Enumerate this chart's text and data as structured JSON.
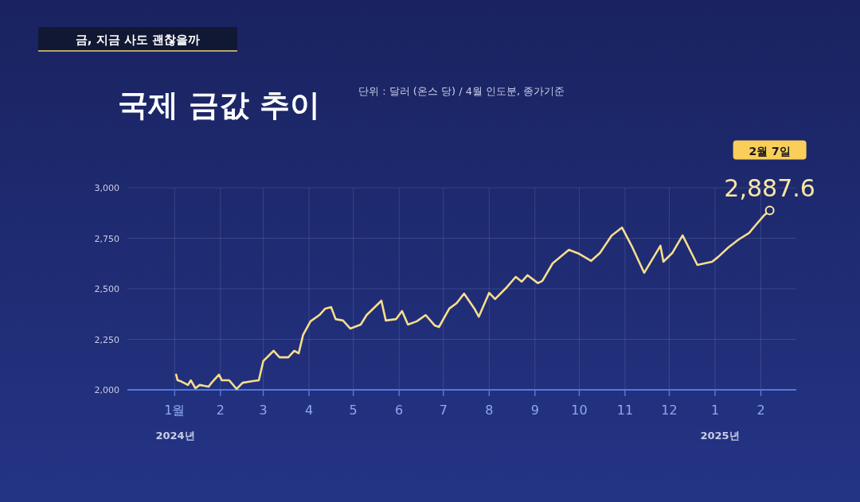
{
  "chart_data": {
    "type": "line",
    "title": "국제 금값 추이",
    "subtitle": "단위 : 달러 (온스 당) / 4월 인도분, 종가기준",
    "annotations": [
      "금, 지금 사도 괜찮을까",
      "2024년",
      "2025년",
      "2월 7일"
    ],
    "x": [
      "2024-01-02",
      "2024-01-03",
      "2024-01-05",
      "2024-01-10",
      "2024-01-12",
      "2024-01-15",
      "2024-01-18",
      "2024-01-24",
      "2024-01-26",
      "2024-01-31",
      "2024-02-02",
      "2024-02-07",
      "2024-02-12",
      "2024-02-16",
      "2024-02-23",
      "2024-02-27",
      "2024-03-01",
      "2024-03-08",
      "2024-03-12",
      "2024-03-18",
      "2024-03-22",
      "2024-03-25",
      "2024-03-28",
      "2024-04-02",
      "2024-04-08",
      "2024-04-12",
      "2024-04-16",
      "2024-04-19",
      "2024-04-24",
      "2024-04-29",
      "2024-05-06",
      "2024-05-10",
      "2024-05-20",
      "2024-05-23",
      "2024-05-30",
      "2024-06-03",
      "2024-06-07",
      "2024-06-13",
      "2024-06-19",
      "2024-06-25",
      "2024-06-28",
      "2024-07-05",
      "2024-07-10",
      "2024-07-15",
      "2024-07-22",
      "2024-07-25",
      "2024-08-01",
      "2024-08-05",
      "2024-08-13",
      "2024-08-19",
      "2024-08-23",
      "2024-08-27",
      "2024-09-03",
      "2024-09-06",
      "2024-09-13",
      "2024-09-24",
      "2024-10-01",
      "2024-10-09",
      "2024-10-15",
      "2024-10-23",
      "2024-10-30",
      "2024-11-06",
      "2024-11-14",
      "2024-11-25",
      "2024-11-27",
      "2024-12-03",
      "2024-12-10",
      "2024-12-16",
      "2024-12-20",
      "2024-12-30",
      "2025-01-03",
      "2025-01-10",
      "2025-01-17",
      "2025-01-24",
      "2025-01-28",
      "2025-02-03",
      "2025-02-07"
    ],
    "values": [
      2075,
      2047,
      2043,
      2024,
      2047,
      2008,
      2024,
      2016,
      2035,
      2075,
      2047,
      2047,
      2004,
      2035,
      2043,
      2047,
      2142,
      2193,
      2161,
      2161,
      2193,
      2181,
      2272,
      2339,
      2370,
      2402,
      2409,
      2350,
      2343,
      2303,
      2323,
      2370,
      2441,
      2343,
      2350,
      2390,
      2323,
      2339,
      2370,
      2319,
      2311,
      2402,
      2429,
      2476,
      2402,
      2362,
      2480,
      2449,
      2508,
      2559,
      2535,
      2567,
      2528,
      2539,
      2626,
      2693,
      2673,
      2638,
      2677,
      2764,
      2803,
      2705,
      2579,
      2713,
      2634,
      2677,
      2764,
      2677,
      2618,
      2634,
      2657,
      2705,
      2744,
      2776,
      2811,
      2862,
      2887.6
    ],
    "value_labels": [
      null,
      null,
      null,
      null,
      null,
      null,
      null,
      null,
      null,
      null,
      null,
      null,
      null,
      null,
      null,
      null,
      null,
      null,
      null,
      null,
      null,
      null,
      null,
      null,
      null,
      null,
      null,
      null,
      null,
      null,
      null,
      null,
      null,
      null,
      null,
      null,
      null,
      null,
      null,
      null,
      null,
      null,
      null,
      null,
      null,
      null,
      null,
      null,
      null,
      null,
      null,
      null,
      null,
      null,
      null,
      null,
      null,
      null,
      null,
      null,
      null,
      null,
      null,
      null,
      null,
      null,
      null,
      null,
      null,
      null,
      null,
      null,
      null,
      null,
      null,
      null,
      "2,887.6"
    ],
    "color": "#f6dd8e",
    "xlim": [
      "2023-11-30",
      "2025-02-25"
    ],
    "xticks": [
      {
        "value": "2024-01-01",
        "label": "1월"
      },
      {
        "value": "2024-02-01",
        "label": "2"
      },
      {
        "value": "2024-03-01",
        "label": "3"
      },
      {
        "value": "2024-04-01",
        "label": "4"
      },
      {
        "value": "2024-05-01",
        "label": "5"
      },
      {
        "value": "2024-06-01",
        "label": "6"
      },
      {
        "value": "2024-07-01",
        "label": "7"
      },
      {
        "value": "2024-08-01",
        "label": "8"
      },
      {
        "value": "2024-09-01",
        "label": "9"
      },
      {
        "value": "2024-10-01",
        "label": "10"
      },
      {
        "value": "2024-11-01",
        "label": "11"
      },
      {
        "value": "2024-12-01",
        "label": "12"
      },
      {
        "value": "2025-01-01",
        "label": "1"
      },
      {
        "value": "2025-02-01",
        "label": "2"
      }
    ],
    "ylim": [
      2000,
      3000
    ],
    "yticks": [
      {
        "value": 2000,
        "label": "2,000"
      },
      {
        "value": 2250,
        "label": "2,250"
      },
      {
        "value": 2500,
        "label": "2,500"
      },
      {
        "value": 2750,
        "label": "2,750"
      },
      {
        "value": 3000,
        "label": "3,000"
      }
    ],
    "grid": true
  }
}
